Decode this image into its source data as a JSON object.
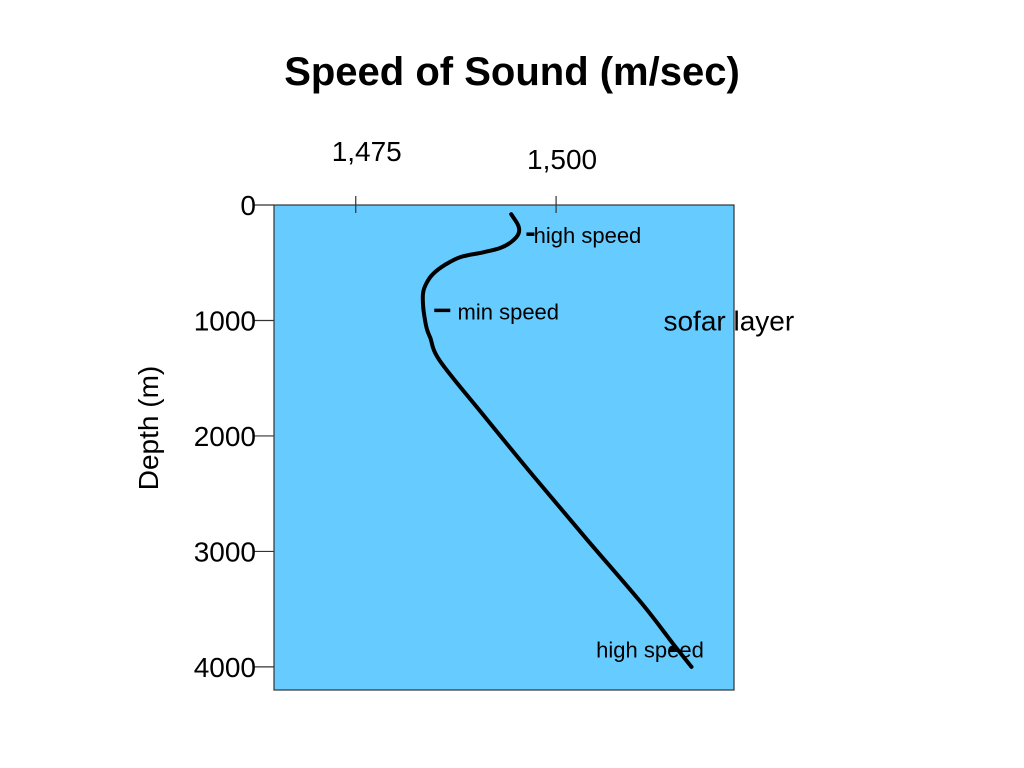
{
  "chart_data": {
    "type": "line",
    "title": "Speed of Sound (m/sec)",
    "xlabel": "",
    "ylabel": "Depth (m)",
    "x_axis_position": "top",
    "y_inverted": true,
    "xlim": [
      1464.8,
      1522.2
    ],
    "ylim": [
      0,
      4200
    ],
    "x_ticks": [
      {
        "value": 1475,
        "label": "1,475"
      },
      {
        "value": 1500,
        "label": "1,500"
      }
    ],
    "y_ticks": [
      {
        "value": 0,
        "label": "0"
      },
      {
        "value": 1000,
        "label": "1000"
      },
      {
        "value": 2000,
        "label": "2000"
      },
      {
        "value": 3000,
        "label": "3000"
      },
      {
        "value": 4000,
        "label": "4000"
      }
    ],
    "grid": false,
    "background_color": "#66ccff",
    "line_color": "#000000",
    "series": [
      {
        "x": [
          1494.4,
          1495.3,
          1495.3,
          1494.4,
          1493.1,
          1490.9,
          1488.1,
          1486.1,
          1484.6,
          1483.8,
          1483.4,
          1483.4,
          1483.6,
          1483.9,
          1484.3,
          1485.5,
          1490.7,
          1497.2,
          1503.9,
          1510.7,
          1514.6,
          1516.9
        ],
        "y": [
          80,
          180,
          250,
          320,
          370,
          410,
          450,
          520,
          600,
          680,
          760,
          870,
          980,
          1080,
          1150,
          1350,
          1800,
          2350,
          2900,
          3450,
          3800,
          4000
        ]
      }
    ],
    "annotations": [
      {
        "text": "high speed",
        "x": 1497.2,
        "y": 270,
        "marker": "tick",
        "marker_x": 1496.3
      },
      {
        "text": "min speed",
        "x": 1487.7,
        "y": 930,
        "marker": "tick",
        "marker_x": 1484.8
      },
      {
        "text": "sofar layer",
        "x": 1513.4,
        "y": 1000,
        "marker": "none"
      },
      {
        "text": "high speed",
        "x": 1505.0,
        "y": 3860,
        "marker": "tick",
        "marker_x": 1514.2
      }
    ]
  }
}
